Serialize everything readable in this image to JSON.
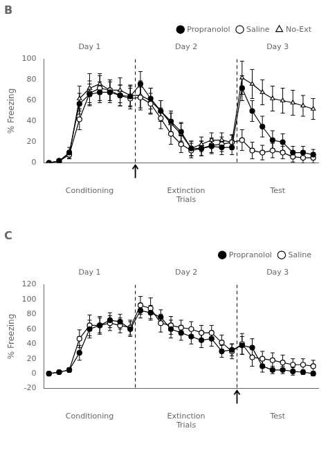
{
  "chart_data": [
    {
      "type": "line",
      "title": "B",
      "y_label": "% Freezing",
      "x": [
        1,
        2,
        3,
        4,
        5,
        6,
        7,
        8,
        9,
        10,
        11,
        12,
        13,
        14,
        15,
        16,
        17,
        18,
        19,
        20,
        21,
        22,
        23,
        24,
        25,
        26,
        27
      ],
      "series": [
        {
          "name": "Propranolol",
          "color": "#000000",
          "marker": "filled_circle",
          "values": [
            0,
            2,
            10,
            57,
            66,
            68,
            68,
            65,
            64,
            76,
            62,
            50,
            40,
            30,
            14,
            14,
            16,
            15,
            15,
            72,
            50,
            35,
            22,
            20,
            10,
            10,
            8
          ],
          "errors": [
            0,
            1,
            5,
            10,
            10,
            10,
            10,
            10,
            10,
            12,
            10,
            10,
            10,
            9,
            7,
            7,
            7,
            7,
            7,
            12,
            10,
            10,
            9,
            8,
            6,
            6,
            5
          ]
        },
        {
          "name": "Saline",
          "color": "#000000",
          "marker": "open_circle",
          "values": [
            0,
            2,
            8,
            42,
            67,
            72,
            70,
            65,
            62,
            63,
            57,
            43,
            28,
            18,
            12,
            14,
            17,
            18,
            20,
            22,
            12,
            10,
            12,
            10,
            6,
            5,
            5
          ],
          "errors": [
            0,
            1,
            4,
            10,
            12,
            12,
            10,
            10,
            10,
            10,
            10,
            10,
            10,
            8,
            7,
            7,
            7,
            7,
            7,
            10,
            8,
            7,
            7,
            6,
            5,
            5,
            5
          ]
        },
        {
          "name": "No-Ext",
          "color": "#000000",
          "marker": "open_triangle",
          "values": [
            0,
            2,
            8,
            62,
            72,
            76,
            70,
            70,
            65,
            65,
            60,
            50,
            38,
            28,
            14,
            18,
            22,
            22,
            20,
            82,
            76,
            68,
            62,
            60,
            58,
            55,
            52
          ],
          "errors": [
            0,
            1,
            4,
            12,
            14,
            10,
            10,
            12,
            10,
            14,
            12,
            10,
            10,
            10,
            7,
            7,
            7,
            7,
            7,
            16,
            14,
            12,
            12,
            12,
            12,
            10,
            10
          ]
        }
      ],
      "xlim": [
        0.5,
        27.5
      ],
      "ylim": [
        0,
        100
      ],
      "yticks": [
        0,
        20,
        40,
        60,
        80,
        100
      ],
      "grid": false,
      "legend": "top",
      "tick_labels": "y",
      "vlines": {
        "x": [
          9.5,
          19.5
        ],
        "line_style": "dashed"
      },
      "arrows": [
        {
          "x": 9.5
        }
      ],
      "annotations": [
        {
          "text": "Day 1",
          "x": 5.0,
          "position": "top"
        },
        {
          "text": "Day 2",
          "x": 14.5,
          "position": "top"
        },
        {
          "text": "Day 3",
          "x": 23.5,
          "position": "top"
        },
        {
          "text": "Conditioning",
          "x": 5.0,
          "position": "bottom"
        },
        {
          "text": "Extinction\nTrials",
          "x": 14.5,
          "position": "bottom"
        },
        {
          "text": "Test",
          "x": 23.5,
          "position": "bottom"
        }
      ]
    },
    {
      "type": "line",
      "title": "C",
      "y_label": "% Freezing",
      "x": [
        1,
        2,
        3,
        4,
        5,
        6,
        7,
        8,
        9,
        10,
        11,
        12,
        13,
        14,
        15,
        16,
        17,
        18,
        19,
        20,
        21,
        22,
        23,
        24,
        25,
        26,
        27
      ],
      "series": [
        {
          "name": "Propranolol",
          "color": "#000000",
          "marker": "filled_circle",
          "values": [
            0,
            2,
            5,
            28,
            60,
            65,
            72,
            70,
            60,
            85,
            82,
            76,
            60,
            55,
            50,
            45,
            47,
            30,
            32,
            38,
            35,
            10,
            5,
            5,
            3,
            2,
            0
          ],
          "errors": [
            0,
            1,
            3,
            10,
            12,
            10,
            10,
            10,
            10,
            10,
            10,
            10,
            12,
            10,
            10,
            10,
            10,
            8,
            8,
            12,
            12,
            8,
            5,
            5,
            5,
            3,
            3
          ]
        },
        {
          "name": "Saline",
          "color": "#000000",
          "marker": "open_circle",
          "values": [
            0,
            2,
            5,
            47,
            65,
            65,
            68,
            65,
            62,
            92,
            88,
            68,
            65,
            62,
            60,
            55,
            55,
            42,
            30,
            40,
            22,
            20,
            18,
            15,
            12,
            12,
            10
          ],
          "errors": [
            0,
            1,
            3,
            12,
            14,
            12,
            10,
            10,
            10,
            12,
            14,
            12,
            12,
            10,
            10,
            10,
            10,
            10,
            10,
            14,
            12,
            10,
            10,
            10,
            8,
            8,
            8
          ]
        }
      ],
      "xlim": [
        0.5,
        27.5
      ],
      "ylim": [
        -20,
        120
      ],
      "yticks": [
        -20,
        0,
        20,
        40,
        60,
        80,
        100,
        120
      ],
      "grid": false,
      "legend": "top",
      "tick_labels": "y",
      "vlines": {
        "x": [
          9.5,
          19.5
        ],
        "line_style": "dashed"
      },
      "arrows": [
        {
          "x": 19.5
        }
      ],
      "annotations": [
        {
          "text": "Day 1",
          "x": 5.0,
          "position": "top"
        },
        {
          "text": "Day 2",
          "x": 14.5,
          "position": "top"
        },
        {
          "text": "Day 3",
          "x": 23.5,
          "position": "top"
        },
        {
          "text": "Conditioning",
          "x": 5.0,
          "position": "bottom"
        },
        {
          "text": "Extinction\nTrials",
          "x": 14.5,
          "position": "bottom"
        },
        {
          "text": "Test",
          "x": 23.5,
          "position": "bottom"
        }
      ]
    }
  ]
}
